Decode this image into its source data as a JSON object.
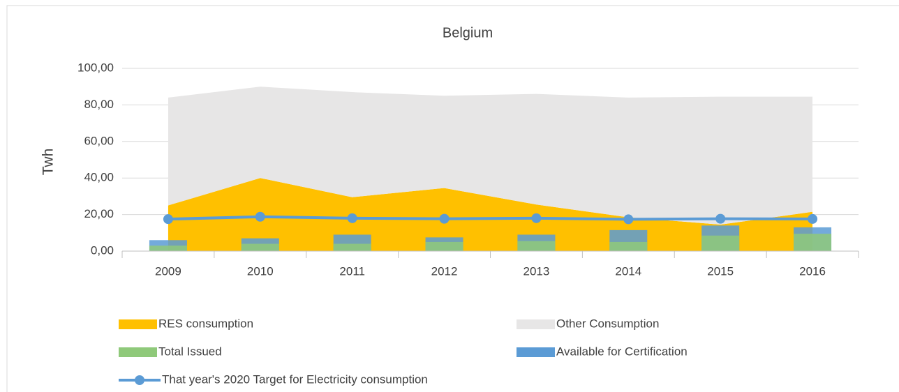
{
  "chart_data": {
    "type": "combo",
    "title": "Belgium",
    "y_label": "Twh",
    "categories": [
      "2009",
      "2010",
      "2011",
      "2012",
      "2013",
      "2014",
      "2015",
      "2016"
    ],
    "series": [
      {
        "name": "RES consumption",
        "type": "area",
        "stacked": true,
        "color": "#ffc000",
        "values": [
          25,
          40,
          29.5,
          34.5,
          25.5,
          18.5,
          14.5,
          21.5
        ]
      },
      {
        "name": "Other Consumption",
        "type": "area",
        "stacked": true,
        "color": "#e7e6e6",
        "values": [
          59,
          50,
          57.5,
          50.5,
          60.5,
          65.5,
          70,
          63
        ]
      },
      {
        "name": "Total Issued",
        "type": "bar",
        "color": "#8fc97a",
        "values": [
          3,
          4,
          4,
          5,
          5.5,
          5,
          8.5,
          9.5
        ]
      },
      {
        "name": "Available for Certification",
        "type": "bar",
        "color": "#5b9bd5",
        "values": [
          6,
          7,
          9,
          7.5,
          9,
          11.5,
          14,
          13
        ]
      },
      {
        "name": "That year's 2020 Target for Electricity consumption",
        "type": "line",
        "color": "#5b9bd5",
        "values": [
          17.5,
          18.8,
          18,
          17.7,
          18,
          17.4,
          17.7,
          17.6
        ]
      }
    ],
    "ylim": [
      0,
      100
    ],
    "yticks": [
      {
        "value": 0,
        "label": "0,00"
      },
      {
        "value": 20,
        "label": "20,00"
      },
      {
        "value": 40,
        "label": "40,00"
      },
      {
        "value": 60,
        "label": "60,00"
      },
      {
        "value": 80,
        "label": "80,00"
      },
      {
        "value": 100,
        "label": "100,00"
      }
    ],
    "grid": true,
    "legend": "bottom"
  }
}
